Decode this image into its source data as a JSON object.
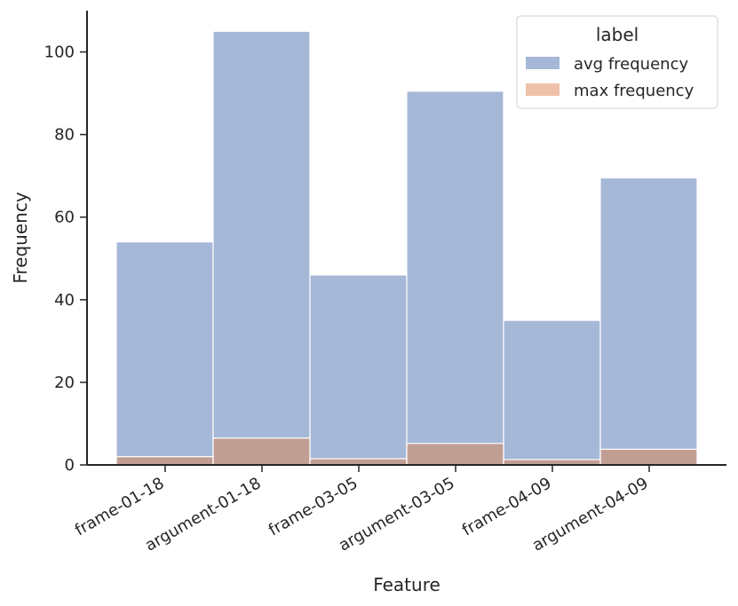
{
  "chart_data": {
    "type": "bar",
    "categories": [
      "frame-01-18",
      "argument-01-18",
      "frame-03-05",
      "argument-03-05",
      "frame-04-09",
      "argument-04-09"
    ],
    "series": [
      {
        "name": "avg frequency",
        "values": [
          54,
          105,
          46,
          90.5,
          35,
          69.5
        ],
        "color": "#4c72b0"
      },
      {
        "name": "max frequency",
        "values": [
          2,
          6.5,
          1.5,
          5.2,
          1.3,
          3.8
        ],
        "color": "#dd8452"
      }
    ],
    "xlabel": "Feature",
    "ylabel": "Frequency",
    "ylim": [
      0,
      110
    ],
    "yticks": [
      0,
      20,
      40,
      60,
      80,
      100
    ],
    "legend": {
      "title": "label",
      "position": "top-right"
    },
    "grid": false,
    "bar_alpha": 0.5
  }
}
